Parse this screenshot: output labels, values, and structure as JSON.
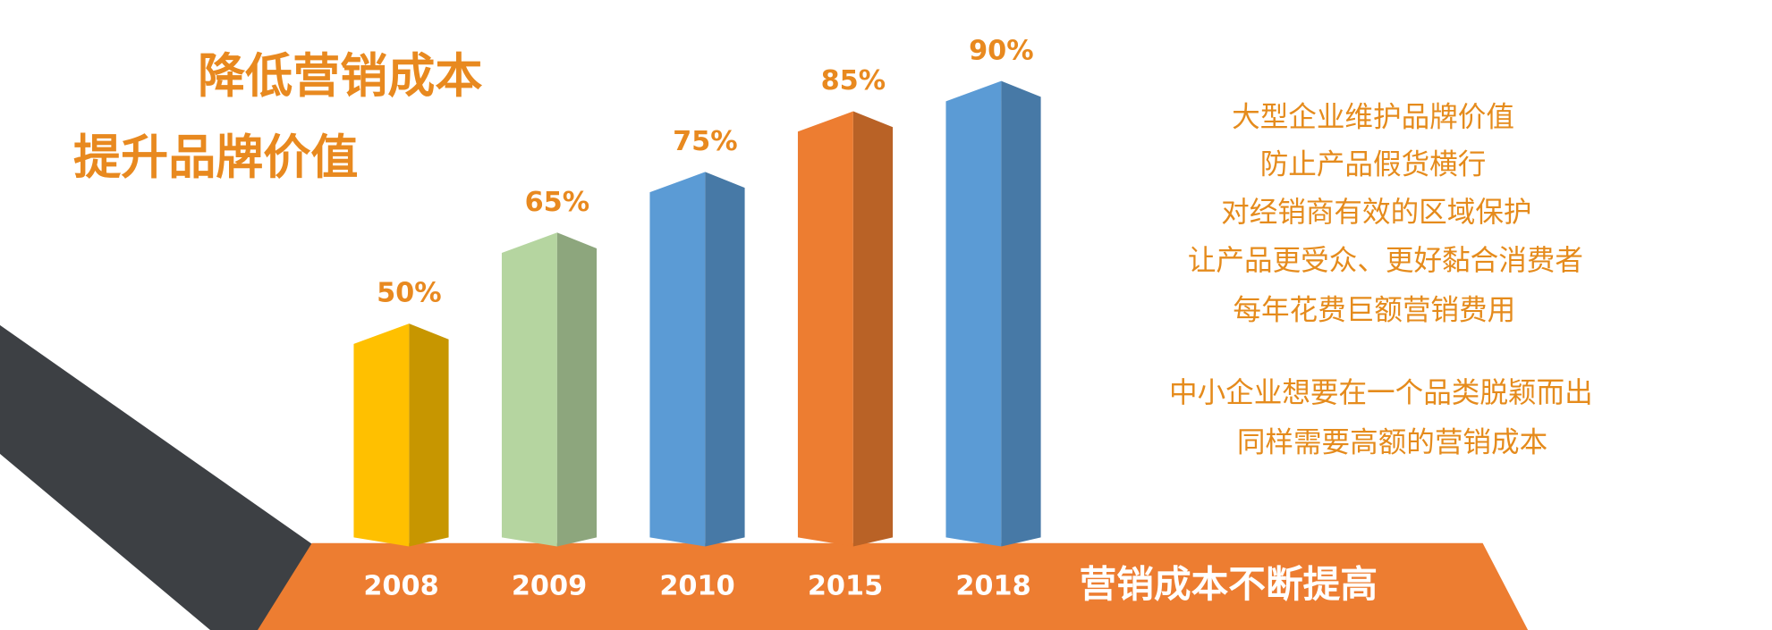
{
  "chart_data": {
    "type": "bar",
    "title": [
      "降低营销成本",
      "提升品牌价值"
    ],
    "categories": [
      "2008",
      "2009",
      "2010",
      "2015",
      "2018"
    ],
    "values": [
      50,
      65,
      75,
      85,
      90
    ],
    "value_labels": [
      "50%",
      "65%",
      "75%",
      "85%",
      "90%"
    ],
    "colors": [
      "#ffc000",
      "#b5d5a0",
      "#5b9bd5",
      "#ed7d31",
      "#5b9bd5"
    ],
    "ylim": [
      14,
      100
    ],
    "annotations": [
      "大型企业维护品牌价值",
      "防止产品假货横行",
      "对经销商有效的区域保护",
      "让产品更受众、更好黏合消费者",
      "每年花费巨额营销费用",
      "中小企业想要在一个品类脱颖而出",
      "同样需要高额的营销成本"
    ],
    "banner": "营销成本不断提高"
  }
}
